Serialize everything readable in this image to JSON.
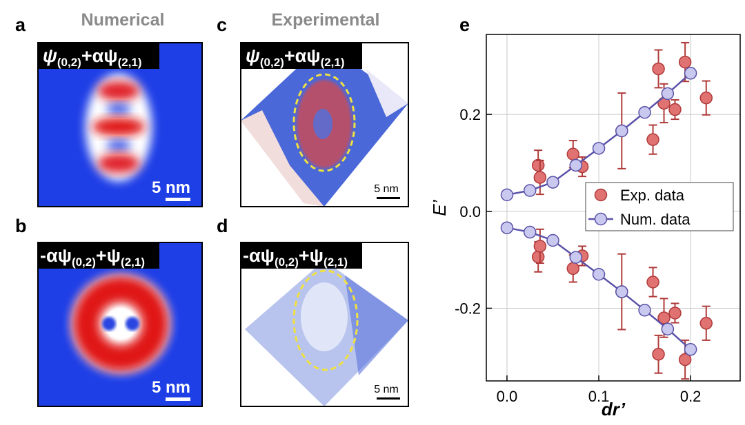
{
  "panels": [
    {
      "label": "a",
      "title": "Numerical",
      "formula": [
        "ψ",
        "(0,2)",
        "+αψ",
        "(2,1)"
      ],
      "scale_bar": "5 nm"
    },
    {
      "label": "b",
      "formula": [
        "-αψ",
        "(0,2)",
        "+ψ",
        "(2,1)"
      ],
      "scale_bar": "5 nm"
    },
    {
      "label": "c",
      "title": "Experimental",
      "formula": [
        "ψ",
        "(0,2)",
        "+αψ",
        "(2,1)"
      ],
      "scale_bar": "5 nm"
    },
    {
      "label": "d",
      "formula": [
        "-αψ",
        "(0,2)",
        "+ψ",
        "(2,1)"
      ],
      "scale_bar": "5 nm"
    }
  ],
  "chart_data": {
    "type": "scatter-line",
    "label": "e",
    "x_label": "dr’",
    "y_label": "E’",
    "xlim": [
      -0.0225,
      0.254
    ],
    "ylim": [
      -0.35,
      0.365
    ],
    "xticks": [
      {
        "value": 0,
        "label": "0.0"
      },
      {
        "value": 0.1,
        "label": "0.1"
      },
      {
        "value": 0.2,
        "label": "0.2"
      }
    ],
    "yticks": [
      {
        "value": -0.2,
        "label": "-0.2"
      },
      {
        "value": 0,
        "label": "0.0"
      },
      {
        "value": 0.2,
        "label": "0.2"
      }
    ],
    "grid": true,
    "legend": "right",
    "series": [
      {
        "name": "Exp. data",
        "color": "#e07272",
        "edge": "#b03a3a",
        "kind": "errorbar",
        "x": [
          0.034,
          0.036,
          0.072,
          0.082,
          0.125,
          0.159,
          0.165,
          0.171,
          0.183,
          0.194,
          0.217,
          0.034,
          0.036,
          0.072,
          0.082,
          0.125,
          0.159,
          0.165,
          0.171,
          0.183,
          0.194,
          0.217
        ],
        "values": [
          0.095,
          0.07,
          0.118,
          0.092,
          0.166,
          0.148,
          0.294,
          0.223,
          0.21,
          0.308,
          0.234,
          -0.094,
          -0.072,
          -0.118,
          -0.092,
          -0.166,
          -0.146,
          -0.295,
          -0.22,
          -0.21,
          -0.306,
          -0.231
        ],
        "errors": [
          0.031,
          0.035,
          0.028,
          0.02,
          0.078,
          0.03,
          0.039,
          0.04,
          0.02,
          0.04,
          0.035,
          0.031,
          0.035,
          0.028,
          0.02,
          0.078,
          0.03,
          0.039,
          0.04,
          0.02,
          0.04,
          0.035
        ]
      },
      {
        "name": "Num. data",
        "color": "#c9c9ef",
        "edge": "#5a52a8",
        "kind": "line",
        "x": [
          0,
          0.025,
          0.05,
          0.075,
          0.1,
          0.125,
          0.15,
          0.175,
          0.2,
          null,
          0,
          0.025,
          0.05,
          0.075,
          0.1,
          0.125,
          0.15,
          0.175,
          0.2
        ],
        "values": [
          0.034,
          0.043,
          0.06,
          0.095,
          0.13,
          0.166,
          0.204,
          0.243,
          0.285,
          null,
          -0.034,
          -0.043,
          -0.06,
          -0.095,
          -0.13,
          -0.166,
          -0.204,
          -0.243,
          -0.285
        ]
      }
    ]
  }
}
